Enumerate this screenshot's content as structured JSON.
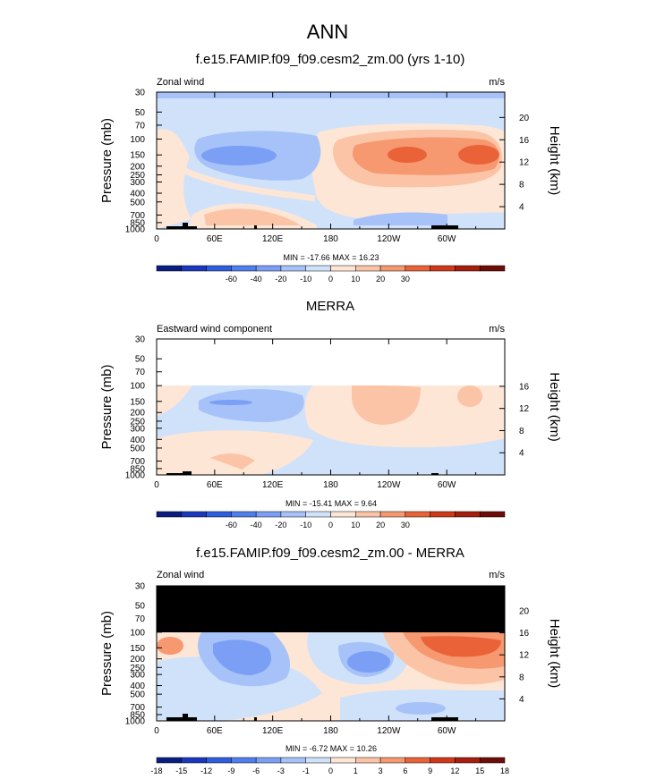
{
  "figure": {
    "title": "ANN"
  },
  "panels": [
    {
      "title": "f.e15.FAMIP.f09_f09.cesm2_zm.00 (yrs 1-10)",
      "var_label": "Zonal wind",
      "units": "m/s",
      "stats": "MIN = -17.66  MAX =  16.23",
      "colorbar_labels": [
        "-60",
        "-40",
        "-20",
        "-10",
        "0",
        "10",
        "20",
        "30"
      ],
      "height_ticks": [
        "20",
        "16",
        "12",
        "8",
        "4"
      ]
    },
    {
      "title": "MERRA",
      "var_label": "Eastward wind component",
      "units": "m/s",
      "stats": "MIN = -15.41  MAX =   9.64",
      "colorbar_labels": [
        "-60",
        "-40",
        "-20",
        "-10",
        "0",
        "10",
        "20",
        "30"
      ],
      "height_ticks": [
        "16",
        "12",
        "8",
        "4"
      ]
    },
    {
      "title": "f.e15.FAMIP.f09_f09.cesm2_zm.00 - MERRA",
      "var_label": "Zonal wind",
      "units": "m/s",
      "stats": "MIN =  -6.72  MAX =  10.26",
      "colorbar_labels": [
        "-18",
        "-15",
        "-12",
        "-9",
        "-6",
        "-3",
        "-1",
        "0",
        "1",
        "3",
        "6",
        "9",
        "12",
        "15",
        "18"
      ],
      "height_ticks": [
        "20",
        "16",
        "12",
        "8",
        "4"
      ]
    }
  ],
  "chart_data": [
    {
      "type": "heatmap",
      "title": "f.e15.FAMIP.f09_f09.cesm2_zm.00 (yrs 1-10)",
      "xlabel": "",
      "ylabel": "Pressure (mb)",
      "y2label": "Height (km)",
      "x_tick_labels": [
        "0",
        "60E",
        "120E",
        "180",
        "120W",
        "60W"
      ],
      "y_tick_labels": [
        "30",
        "50",
        "70",
        "100",
        "150",
        "200",
        "250",
        "300",
        "400",
        "500",
        "700",
        "850",
        "1000"
      ],
      "xlim": [
        0,
        360
      ],
      "ylim_mb": [
        30,
        1000
      ],
      "min": -17.66,
      "max": 16.23,
      "levels": [
        -60,
        -40,
        -20,
        -10,
        0,
        10,
        20,
        30
      ],
      "colors": [
        "#0a1e82",
        "#1a38bd",
        "#2e5ee0",
        "#4f7fef",
        "#7a9ff5",
        "#a6c2f8",
        "#d0e2fa",
        "#fde6d6",
        "#fcc4a6",
        "#f69870",
        "#ea6338",
        "#d0381a",
        "#a51e0e",
        "#6e0c07"
      ],
      "features": [
        {
          "kind": "negative",
          "lon": [
            30,
            140
          ],
          "p": [
            110,
            250
          ],
          "peak": -17.66
        },
        {
          "kind": "positive",
          "lon": [
            160,
            360
          ],
          "p": [
            90,
            300
          ],
          "peak": 16.23
        },
        {
          "kind": "positive",
          "lon": [
            270,
            330
          ],
          "p": [
            120,
            200
          ],
          "peak": 16.0
        },
        {
          "kind": "positive",
          "lon": [
            210,
            250
          ],
          "p": [
            120,
            200
          ],
          "peak": 12.0
        }
      ]
    },
    {
      "type": "heatmap",
      "title": "MERRA",
      "xlabel": "",
      "ylabel": "Pressure (mb)",
      "y2label": "Height (km)",
      "x_tick_labels": [
        "0",
        "60E",
        "120E",
        "180",
        "120W",
        "60W"
      ],
      "y_tick_labels": [
        "30",
        "50",
        "70",
        "100",
        "150",
        "200",
        "250",
        "300",
        "400",
        "500",
        "700",
        "850",
        "1000"
      ],
      "xlim": [
        0,
        360
      ],
      "ylim_mb": [
        30,
        1000
      ],
      "data_top_mb": 100,
      "min": -15.41,
      "max": 9.64,
      "levels": [
        -60,
        -40,
        -20,
        -10,
        0,
        10,
        20,
        30
      ],
      "colors": [
        "#0a1e82",
        "#1a38bd",
        "#2e5ee0",
        "#4f7fef",
        "#7a9ff5",
        "#a6c2f8",
        "#d0e2fa",
        "#fde6d6",
        "#fcc4a6",
        "#f69870",
        "#ea6338",
        "#d0381a",
        "#a51e0e",
        "#6e0c07"
      ],
      "features": [
        {
          "kind": "negative",
          "lon": [
            60,
            130
          ],
          "p": [
            100,
            220
          ],
          "peak": -15.41
        },
        {
          "kind": "positive",
          "lon": [
            200,
            270
          ],
          "p": [
            100,
            250
          ],
          "peak": 9.64
        },
        {
          "kind": "positive",
          "lon": [
            310,
            350
          ],
          "p": [
            100,
            200
          ],
          "peak": 8.0
        }
      ]
    },
    {
      "type": "heatmap",
      "title": "f.e15.FAMIP.f09_f09.cesm2_zm.00 - MERRA",
      "xlabel": "",
      "ylabel": "Pressure (mb)",
      "y2label": "Height (km)",
      "x_tick_labels": [
        "0",
        "60E",
        "120E",
        "180",
        "120W",
        "60W"
      ],
      "y_tick_labels": [
        "30",
        "50",
        "70",
        "100",
        "150",
        "200",
        "250",
        "300",
        "400",
        "500",
        "700",
        "850",
        "1000"
      ],
      "xlim": [
        0,
        360
      ],
      "ylim_mb": [
        30,
        1000
      ],
      "masked_above_mb": 100,
      "min": -6.72,
      "max": 10.26,
      "levels": [
        -18,
        -15,
        -12,
        -9,
        -6,
        -3,
        -1,
        0,
        1,
        3,
        6,
        9,
        12,
        15,
        18
      ],
      "colors": [
        "#0a1e82",
        "#1a38bd",
        "#2e5ee0",
        "#4f7fef",
        "#7a9ff5",
        "#a6c2f8",
        "#d0e2fa",
        "#fde6d6",
        "#fcc4a6",
        "#f69870",
        "#ea6338",
        "#d0381a",
        "#a51e0e",
        "#6e0c07"
      ],
      "features": [
        {
          "kind": "positive",
          "lon": [
            260,
            360
          ],
          "p": [
            100,
            250
          ],
          "peak": 10.26
        },
        {
          "kind": "negative",
          "lon": [
            190,
            250
          ],
          "p": [
            170,
            330
          ],
          "peak": -6.72
        },
        {
          "kind": "negative",
          "lon": [
            40,
            130
          ],
          "p": [
            110,
            500
          ],
          "peak": -4.0
        }
      ]
    }
  ]
}
